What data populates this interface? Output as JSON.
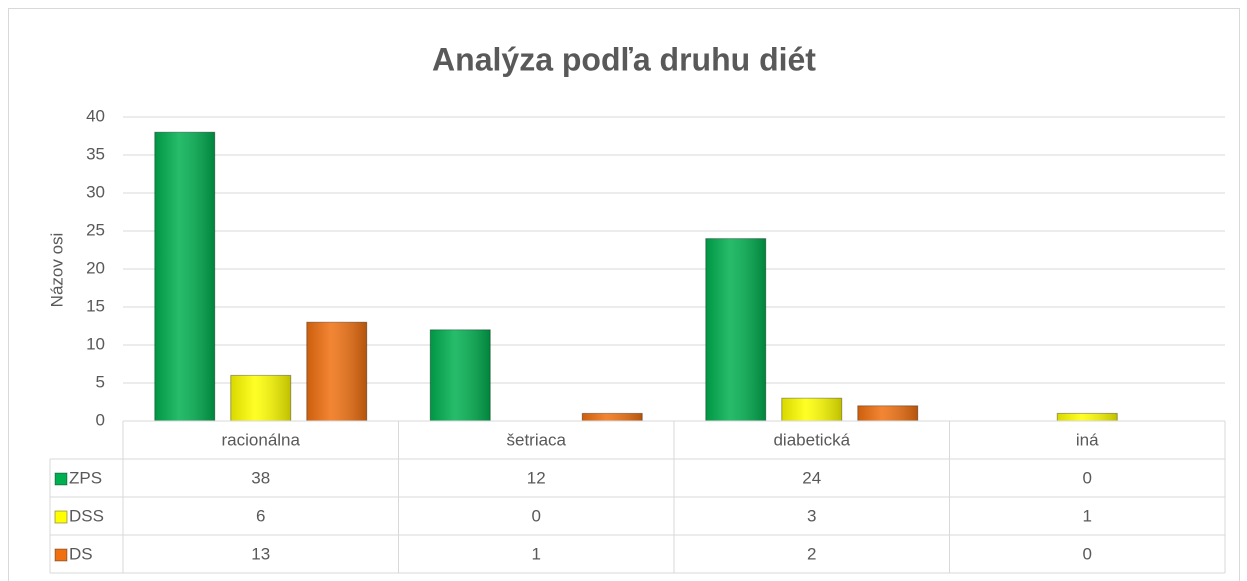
{
  "chart_data": {
    "type": "bar",
    "title": "Analýza podľa druhu diét",
    "y_label": "Názov osi",
    "categories": [
      "racionálna",
      "šetriaca",
      "diabetická",
      "iná"
    ],
    "series": [
      {
        "name": "ZPS",
        "color": "#00b050",
        "values": [
          38,
          12,
          24,
          0
        ]
      },
      {
        "name": "DSS",
        "color": "#ffff00",
        "values": [
          6,
          0,
          3,
          1
        ]
      },
      {
        "name": "DS",
        "color": "#f07010",
        "values": [
          13,
          1,
          2,
          0
        ]
      }
    ],
    "ylim": [
      0,
      40
    ],
    "yticks": [
      0,
      5,
      10,
      15,
      20,
      25,
      30,
      35,
      40
    ],
    "grid": true,
    "data_table": true
  }
}
